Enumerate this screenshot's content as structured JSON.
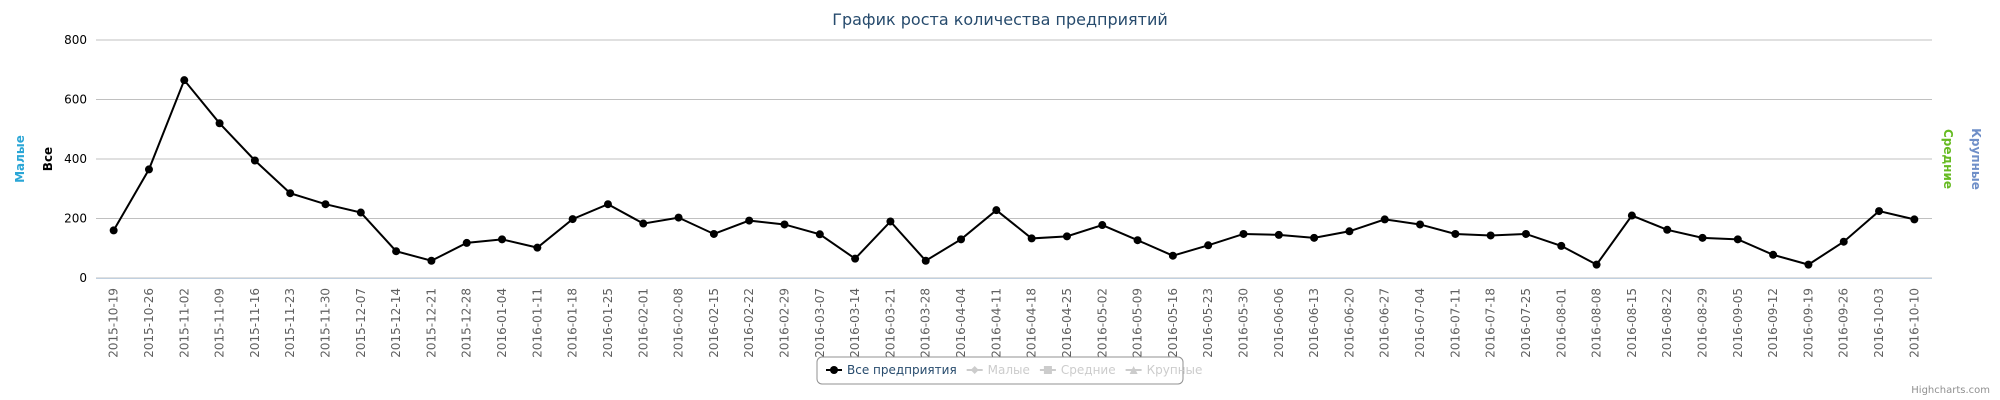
{
  "chart_data": {
    "type": "line",
    "title": "График роста количества предприятий",
    "categories": [
      "2015-10-19",
      "2015-10-26",
      "2015-11-02",
      "2015-11-09",
      "2015-11-16",
      "2015-11-23",
      "2015-11-30",
      "2015-12-07",
      "2015-12-14",
      "2015-12-21",
      "2015-12-28",
      "2016-01-04",
      "2016-01-11",
      "2016-01-18",
      "2016-01-25",
      "2016-02-01",
      "2016-02-08",
      "2016-02-15",
      "2016-02-22",
      "2016-02-29",
      "2016-03-07",
      "2016-03-14",
      "2016-03-21",
      "2016-03-28",
      "2016-04-04",
      "2016-04-11",
      "2016-04-18",
      "2016-04-25",
      "2016-05-02",
      "2016-05-09",
      "2016-05-16",
      "2016-05-23",
      "2016-05-30",
      "2016-06-06",
      "2016-06-13",
      "2016-06-20",
      "2016-06-27",
      "2016-07-04",
      "2016-07-11",
      "2016-07-18",
      "2016-07-25",
      "2016-08-01",
      "2016-08-08",
      "2016-08-15",
      "2016-08-22",
      "2016-08-29",
      "2016-09-05",
      "2016-09-12",
      "2016-09-19",
      "2016-09-26",
      "2016-10-03",
      "2016-10-10"
    ],
    "series": [
      {
        "name": "Все предприятия",
        "color": "#000000",
        "values": [
          160,
          365,
          665,
          520,
          395,
          285,
          248,
          220,
          90,
          58,
          118,
          130,
          102,
          198,
          248,
          183,
          203,
          148,
          193,
          180,
          147,
          65,
          190,
          58,
          130,
          228,
          133,
          140,
          178,
          127,
          75,
          110,
          148,
          145,
          135,
          157,
          197,
          180,
          148,
          143,
          148,
          108,
          45,
          210,
          162,
          135,
          130,
          78,
          45,
          122,
          225,
          197
        ]
      }
    ],
    "legend": [
      {
        "name": "Все предприятия",
        "marker": "circle",
        "visible": true
      },
      {
        "name": "Малые",
        "marker": "diamond",
        "visible": false
      },
      {
        "name": "Средние",
        "marker": "square",
        "visible": false
      },
      {
        "name": "Крупные",
        "marker": "triangle",
        "visible": false
      }
    ],
    "axis_titles": [
      {
        "text": "Малые",
        "side": "left",
        "color": "#2aa6d6"
      },
      {
        "text": "Все",
        "side": "left",
        "color": "#000000"
      },
      {
        "text": "Средние",
        "side": "right",
        "color": "#66bb22"
      },
      {
        "text": "Крупные",
        "side": "right",
        "color": "#6f8fc8"
      }
    ],
    "ylim": [
      0,
      800
    ],
    "yticks": [
      0,
      200,
      400,
      600,
      800
    ],
    "grid": true,
    "credits": "Highcharts.com"
  }
}
